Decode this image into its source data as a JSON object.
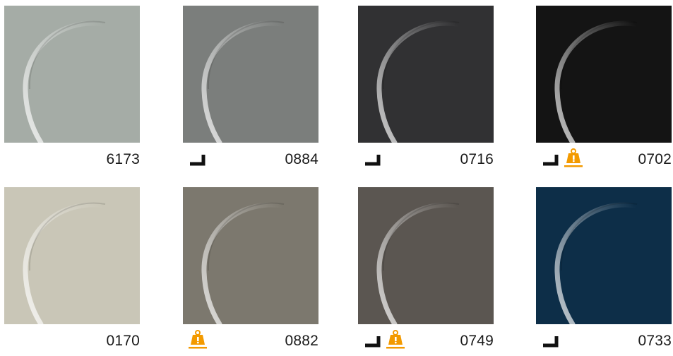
{
  "swatches": [
    {
      "code": "6173",
      "color": "#a5aca6",
      "icons": []
    },
    {
      "code": "0884",
      "color": "#7b7e7c",
      "icons": [
        "corner-mount-icon"
      ]
    },
    {
      "code": "0716",
      "color": "#313133",
      "icons": [
        "corner-mount-icon"
      ]
    },
    {
      "code": "0702",
      "color": "#141414",
      "icons": [
        "corner-mount-icon",
        "weight-warning-icon"
      ]
    },
    {
      "code": "0170",
      "color": "#c9c6b7",
      "icons": []
    },
    {
      "code": "0882",
      "color": "#7c786e",
      "icons": [
        "weight-warning-icon"
      ]
    },
    {
      "code": "0749",
      "color": "#5b5651",
      "icons": [
        "corner-mount-icon",
        "weight-warning-icon"
      ]
    },
    {
      "code": "0733",
      "color": "#0d2e48",
      "icons": [
        "corner-mount-icon"
      ]
    }
  ],
  "accent": "#f39a00"
}
